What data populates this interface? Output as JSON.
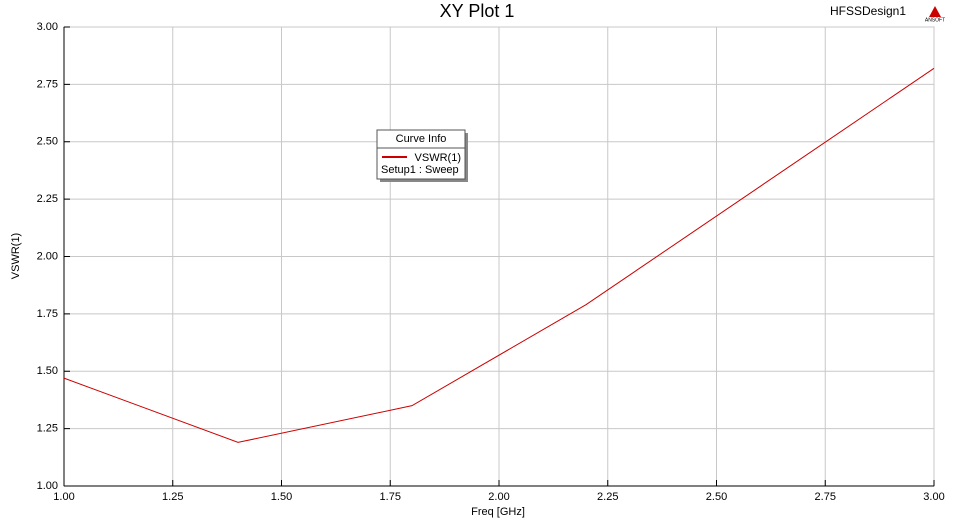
{
  "chart_data": {
    "type": "line",
    "title": "XY Plot 1",
    "design_name": "HFSSDesign1",
    "logo_text": "ANSOFT",
    "x_label": "Freq [GHz]",
    "y_label": "VSWR(1)",
    "x": [
      1.0,
      1.4,
      1.8,
      2.2,
      3.0
    ],
    "series": [
      {
        "name": "VSWR(1)",
        "color": "#cc0000",
        "values": [
          1.47,
          1.19,
          1.35,
          1.79,
          2.82
        ]
      }
    ],
    "legend_title": "Curve Info",
    "legend_subtitle": "Setup1 : Sweep",
    "xlim": [
      1.0,
      3.0
    ],
    "xticks": [
      {
        "value": 1.0,
        "label": "1.00"
      },
      {
        "value": 1.25,
        "label": "1.25"
      },
      {
        "value": 1.5,
        "label": "1.50"
      },
      {
        "value": 1.75,
        "label": "1.75"
      },
      {
        "value": 2.0,
        "label": "2.00"
      },
      {
        "value": 2.25,
        "label": "2.25"
      },
      {
        "value": 2.5,
        "label": "2.50"
      },
      {
        "value": 2.75,
        "label": "2.75"
      },
      {
        "value": 3.0,
        "label": "3.00"
      }
    ],
    "ylim": [
      1.0,
      3.0
    ],
    "yticks": [
      {
        "value": 1.0,
        "label": "1.00"
      },
      {
        "value": 1.25,
        "label": "1.25"
      },
      {
        "value": 1.5,
        "label": "1.50"
      },
      {
        "value": 1.75,
        "label": "1.75"
      },
      {
        "value": 2.0,
        "label": "2.00"
      },
      {
        "value": 2.25,
        "label": "2.25"
      },
      {
        "value": 2.5,
        "label": "2.50"
      },
      {
        "value": 2.75,
        "label": "2.75"
      },
      {
        "value": 3.0,
        "label": "3.00"
      }
    ],
    "grid": true
  }
}
